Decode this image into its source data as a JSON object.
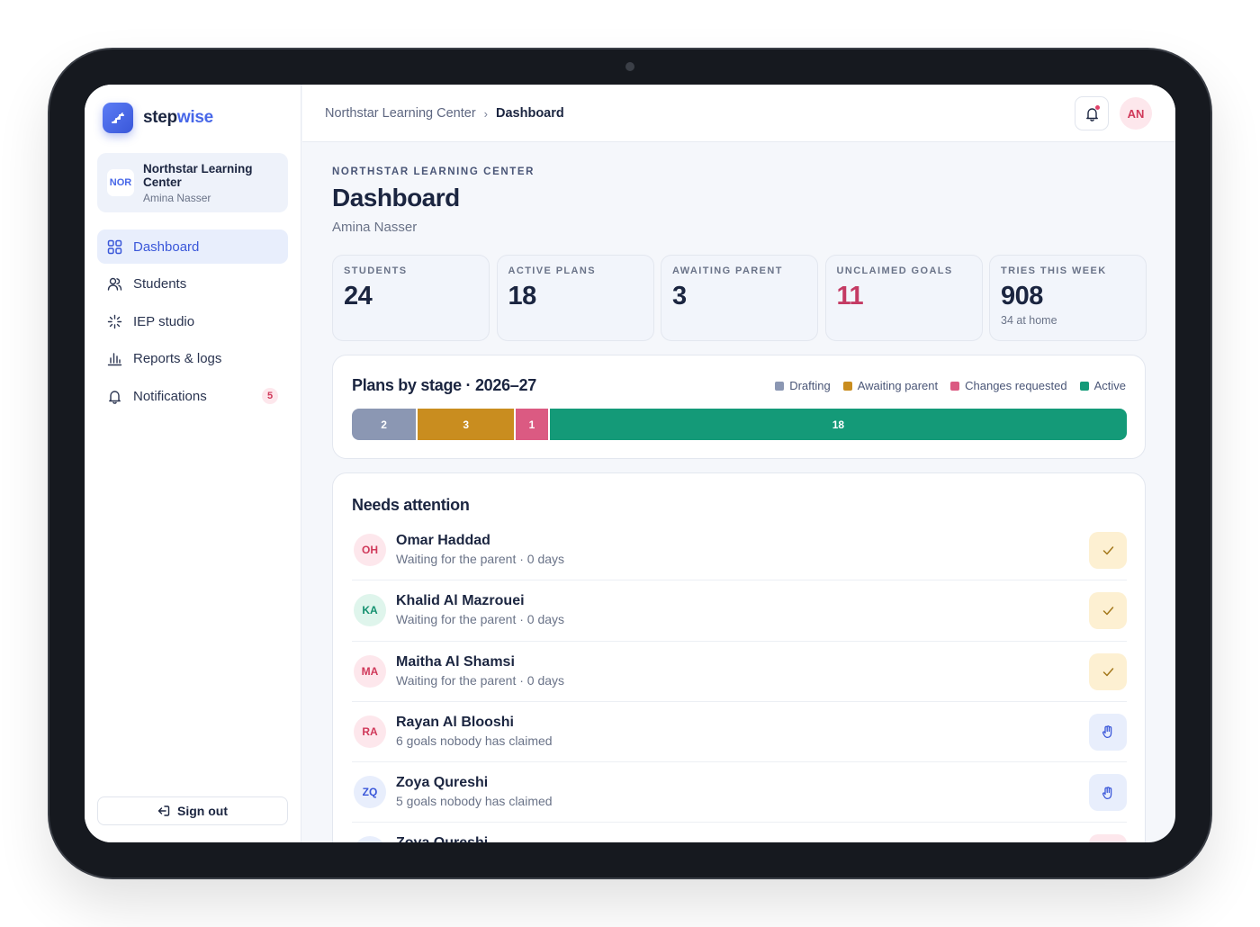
{
  "brand": {
    "name_a": "step",
    "name_b": "wise",
    "logo_icon": "stairs-icon"
  },
  "org": {
    "badge": "NOR",
    "name": "Northstar Learning Center",
    "user": "Amina Nasser"
  },
  "nav": [
    {
      "label": "Dashboard",
      "icon": "dashboard-grid-icon",
      "active": true
    },
    {
      "label": "Students",
      "icon": "users-icon"
    },
    {
      "label": "IEP studio",
      "icon": "sparkle-icon"
    },
    {
      "label": "Reports & logs",
      "icon": "bar-chart-icon"
    },
    {
      "label": "Notifications",
      "icon": "bell-icon",
      "badge": "5"
    }
  ],
  "signout_label": "Sign out",
  "breadcrumb": {
    "parent": "Northstar Learning Center",
    "separator": "›",
    "current": "Dashboard"
  },
  "header": {
    "avatar_initials": "AN"
  },
  "page": {
    "eyebrow": "NORTHSTAR LEARNING CENTER",
    "title": "Dashboard",
    "subtitle": "Amina Nasser"
  },
  "stats": [
    {
      "label": "STUDENTS",
      "value": "24"
    },
    {
      "label": "ACTIVE PLANS",
      "value": "18"
    },
    {
      "label": "AWAITING PARENT",
      "value": "3"
    },
    {
      "label": "UNCLAIMED GOALS",
      "value": "11",
      "accent": "#c43a63"
    },
    {
      "label": "TRIES THIS WEEK",
      "value": "908",
      "sub": "34 at home"
    }
  ],
  "stage_card": {
    "title": "Plans by stage · 2026–27",
    "legend": [
      {
        "label": "Drafting",
        "color": "#8b97b3"
      },
      {
        "label": "Awaiting parent",
        "color": "#c98d1f"
      },
      {
        "label": "Changes requested",
        "color": "#db5a82"
      },
      {
        "label": "Active",
        "color": "#149a78"
      }
    ],
    "segments": [
      {
        "stage": "Drafting",
        "value": 2,
        "label": "2",
        "color": "#8b97b3"
      },
      {
        "stage": "Awaiting parent",
        "value": 3,
        "label": "3",
        "color": "#c98d1f"
      },
      {
        "stage": "Changes requested",
        "value": 1,
        "label": "1",
        "color": "#db5a82"
      },
      {
        "stage": "Active",
        "value": 18,
        "label": "18",
        "color": "#149a78"
      }
    ]
  },
  "attention": {
    "title": "Needs attention",
    "rows": [
      {
        "initials": "OH",
        "name": "Omar Haddad",
        "desc": "Waiting for the parent · 0 days",
        "action": "check-icon",
        "avatar_bg": "#fde7ec",
        "avatar_fg": "#d0395a"
      },
      {
        "initials": "KA",
        "name": "Khalid Al Mazrouei",
        "desc": "Waiting for the parent · 0 days",
        "action": "check-icon",
        "avatar_bg": "#dff5ec",
        "avatar_fg": "#14906f"
      },
      {
        "initials": "MA",
        "name": "Maitha Al Shamsi",
        "desc": "Waiting for the parent · 0 days",
        "action": "check-icon",
        "avatar_bg": "#fde7ec",
        "avatar_fg": "#d0395a"
      },
      {
        "initials": "RA",
        "name": "Rayan Al Blooshi",
        "desc": "6 goals nobody has claimed",
        "action": "hand-icon",
        "avatar_bg": "#fde7ec",
        "avatar_fg": "#d0395a"
      },
      {
        "initials": "ZQ",
        "name": "Zoya Qureshi",
        "desc": "5 goals nobody has claimed",
        "action": "hand-icon",
        "avatar_bg": "#e8eefc",
        "avatar_fg": "#3a57d9"
      },
      {
        "initials": "ZQ",
        "name": "Zoya Qureshi",
        "desc": "",
        "action": "flag-icon",
        "avatar_bg": "#e8eefc",
        "avatar_fg": "#3a57d9"
      }
    ]
  }
}
